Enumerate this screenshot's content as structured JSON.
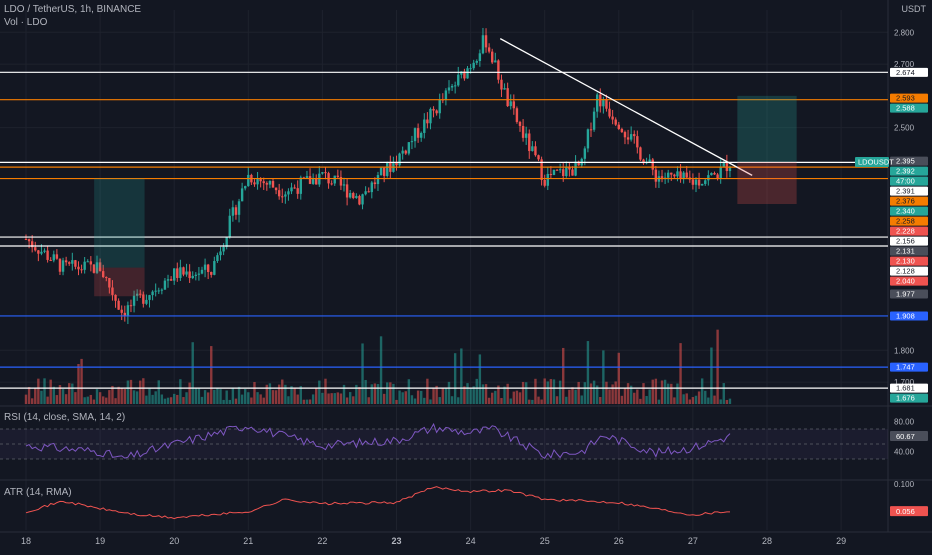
{
  "header": {
    "symbol_line": "LDO / TetherUS, 1h, BINANCE",
    "volume_label": "Vol · LDO",
    "currency": "USDT"
  },
  "chart_data": [
    {
      "type": "candlestick",
      "symbol": "LDOUSDT",
      "title": "LDO / TetherUS, 1h, BINANCE",
      "x_tick_labels": [
        "18",
        "19",
        "20",
        "21",
        "22",
        "23",
        "24",
        "25",
        "26",
        "27",
        "28",
        "29"
      ],
      "y_tick_labels": [
        "2.800",
        "2.700",
        "2.500",
        "1.800",
        "1.700"
      ],
      "y_range": [
        1.65,
        2.87
      ],
      "approx_close_path": [
        {
          "x": "18",
          "close": 2.15
        },
        {
          "x": "18.5",
          "close": 2.06
        },
        {
          "x": "19",
          "close": 2.06
        },
        {
          "x": "19.3",
          "close": 1.92
        },
        {
          "x": "20",
          "close": 2.04
        },
        {
          "x": "20.5",
          "close": 2.05
        },
        {
          "x": "21",
          "close": 2.35
        },
        {
          "x": "21.5",
          "close": 2.3
        },
        {
          "x": "22",
          "close": 2.35
        },
        {
          "x": "22.5",
          "close": 2.28
        },
        {
          "x": "23",
          "close": 2.4
        },
        {
          "x": "23.5",
          "close": 2.55
        },
        {
          "x": "24",
          "close": 2.7
        },
        {
          "x": "24.2",
          "close": 2.78
        },
        {
          "x": "24.5",
          "close": 2.58
        },
        {
          "x": "25",
          "close": 2.34
        },
        {
          "x": "25.5",
          "close": 2.38
        },
        {
          "x": "25.7",
          "close": 2.6
        },
        {
          "x": "26",
          "close": 2.52
        },
        {
          "x": "26.5",
          "close": 2.35
        },
        {
          "x": "27",
          "close": 2.33
        },
        {
          "x": "27.3",
          "close": 2.35
        },
        {
          "x": "27.5",
          "close": 2.392
        }
      ],
      "horizontal_levels": [
        {
          "price": 2.674,
          "color": "#ffffff"
        },
        {
          "price": 2.588,
          "color": "#f57c00"
        },
        {
          "price": 2.391,
          "color": "#ffffff"
        },
        {
          "price": 2.376,
          "color": "#f57c00"
        },
        {
          "price": 2.34,
          "color": "#f57c00"
        },
        {
          "price": 2.156,
          "color": "#ffffff"
        },
        {
          "price": 2.128,
          "color": "#ffffff"
        },
        {
          "price": 1.908,
          "color": "#2962ff"
        },
        {
          "price": 1.747,
          "color": "#2962ff"
        },
        {
          "price": 1.681,
          "color": "#ffffff"
        }
      ],
      "trendline": {
        "from": {
          "x": "24.4",
          "price": 2.78
        },
        "to": {
          "x": "27.8",
          "price": 2.35
        }
      },
      "price_labels": [
        {
          "text": "2.674",
          "bg": "#ffffff",
          "fg": "#131722"
        },
        {
          "text": "2.593",
          "bg": "#f57c00",
          "fg": "#131722"
        },
        {
          "text": "2.588",
          "bg": "#26a69a",
          "fg": "#ffffff"
        },
        {
          "text": "2.395",
          "bg": "#4a4e5a",
          "fg": "#ffffff"
        },
        {
          "text": "2.392",
          "bg": "#26a69a",
          "fg": "#ffffff"
        },
        {
          "text": "47:00",
          "bg": "#26a69a",
          "fg": "#ffffff"
        },
        {
          "text": "2.391",
          "bg": "#ffffff",
          "fg": "#131722"
        },
        {
          "text": "2.376",
          "bg": "#f57c00",
          "fg": "#131722"
        },
        {
          "text": "2.340",
          "bg": "#26a69a",
          "fg": "#ffffff"
        },
        {
          "text": "2.258",
          "bg": "#f57c00",
          "fg": "#131722"
        },
        {
          "text": "2.228",
          "bg": "#ef5350",
          "fg": "#ffffff"
        },
        {
          "text": "2.156",
          "bg": "#ffffff",
          "fg": "#131722"
        },
        {
          "text": "2.131",
          "bg": "#4a4e5a",
          "fg": "#ffffff"
        },
        {
          "text": "2.130",
          "bg": "#ef5350",
          "fg": "#ffffff"
        },
        {
          "text": "2.128",
          "bg": "#ffffff",
          "fg": "#131722"
        },
        {
          "text": "2.040",
          "bg": "#ef5350",
          "fg": "#ffffff"
        },
        {
          "text": "1.977",
          "bg": "#4a4e5a",
          "fg": "#ffffff"
        },
        {
          "text": "1.908",
          "bg": "#2962ff",
          "fg": "#ffffff"
        },
        {
          "text": "1.747",
          "bg": "#2962ff",
          "fg": "#ffffff"
        },
        {
          "text": "1.681",
          "bg": "#ffffff",
          "fg": "#131722"
        },
        {
          "text": "1.676",
          "bg": "#26a69a",
          "fg": "#ffffff"
        }
      ],
      "symbol_badge": "LDOUSDT",
      "colors": {
        "up": "#26a69a",
        "down": "#ef5350",
        "background": "#131722"
      }
    },
    {
      "type": "line",
      "title": "RSI (14, close, SMA, 14, 2)",
      "y_tick_labels": [
        "80.00",
        "40.00"
      ],
      "band": [
        30,
        70
      ],
      "current_value": "60.67",
      "approx_path": [
        {
          "x": "18",
          "value": 48
        },
        {
          "x": "19",
          "value": 40
        },
        {
          "x": "19.3",
          "value": 30
        },
        {
          "x": "20",
          "value": 50
        },
        {
          "x": "21",
          "value": 75
        },
        {
          "x": "21.5",
          "value": 60
        },
        {
          "x": "22",
          "value": 48
        },
        {
          "x": "23",
          "value": 55
        },
        {
          "x": "23.5",
          "value": 72
        },
        {
          "x": "24",
          "value": 65
        },
        {
          "x": "24.3",
          "value": 70
        },
        {
          "x": "25",
          "value": 35
        },
        {
          "x": "25.5",
          "value": 40
        },
        {
          "x": "25.8",
          "value": 62
        },
        {
          "x": "26",
          "value": 55
        },
        {
          "x": "26.5",
          "value": 38
        },
        {
          "x": "27",
          "value": 45
        },
        {
          "x": "27.5",
          "value": 60.67
        }
      ],
      "color": "#7e57c2"
    },
    {
      "type": "line",
      "title": "ATR (14, RMA)",
      "y_tick_labels": [
        "0.100"
      ],
      "current_value": "0.056",
      "approx_path": [
        {
          "x": "18",
          "value": 0.055
        },
        {
          "x": "18.5",
          "value": 0.072
        },
        {
          "x": "19",
          "value": 0.06
        },
        {
          "x": "19.5",
          "value": 0.05
        },
        {
          "x": "20",
          "value": 0.045
        },
        {
          "x": "21",
          "value": 0.055
        },
        {
          "x": "21.5",
          "value": 0.075
        },
        {
          "x": "22",
          "value": 0.068
        },
        {
          "x": "23",
          "value": 0.07
        },
        {
          "x": "23.5",
          "value": 0.095
        },
        {
          "x": "24",
          "value": 0.088
        },
        {
          "x": "24.5",
          "value": 0.09
        },
        {
          "x": "25",
          "value": 0.075
        },
        {
          "x": "26",
          "value": 0.07
        },
        {
          "x": "27",
          "value": 0.05
        },
        {
          "x": "27.5",
          "value": 0.056
        }
      ],
      "color": "#ef5350"
    }
  ]
}
